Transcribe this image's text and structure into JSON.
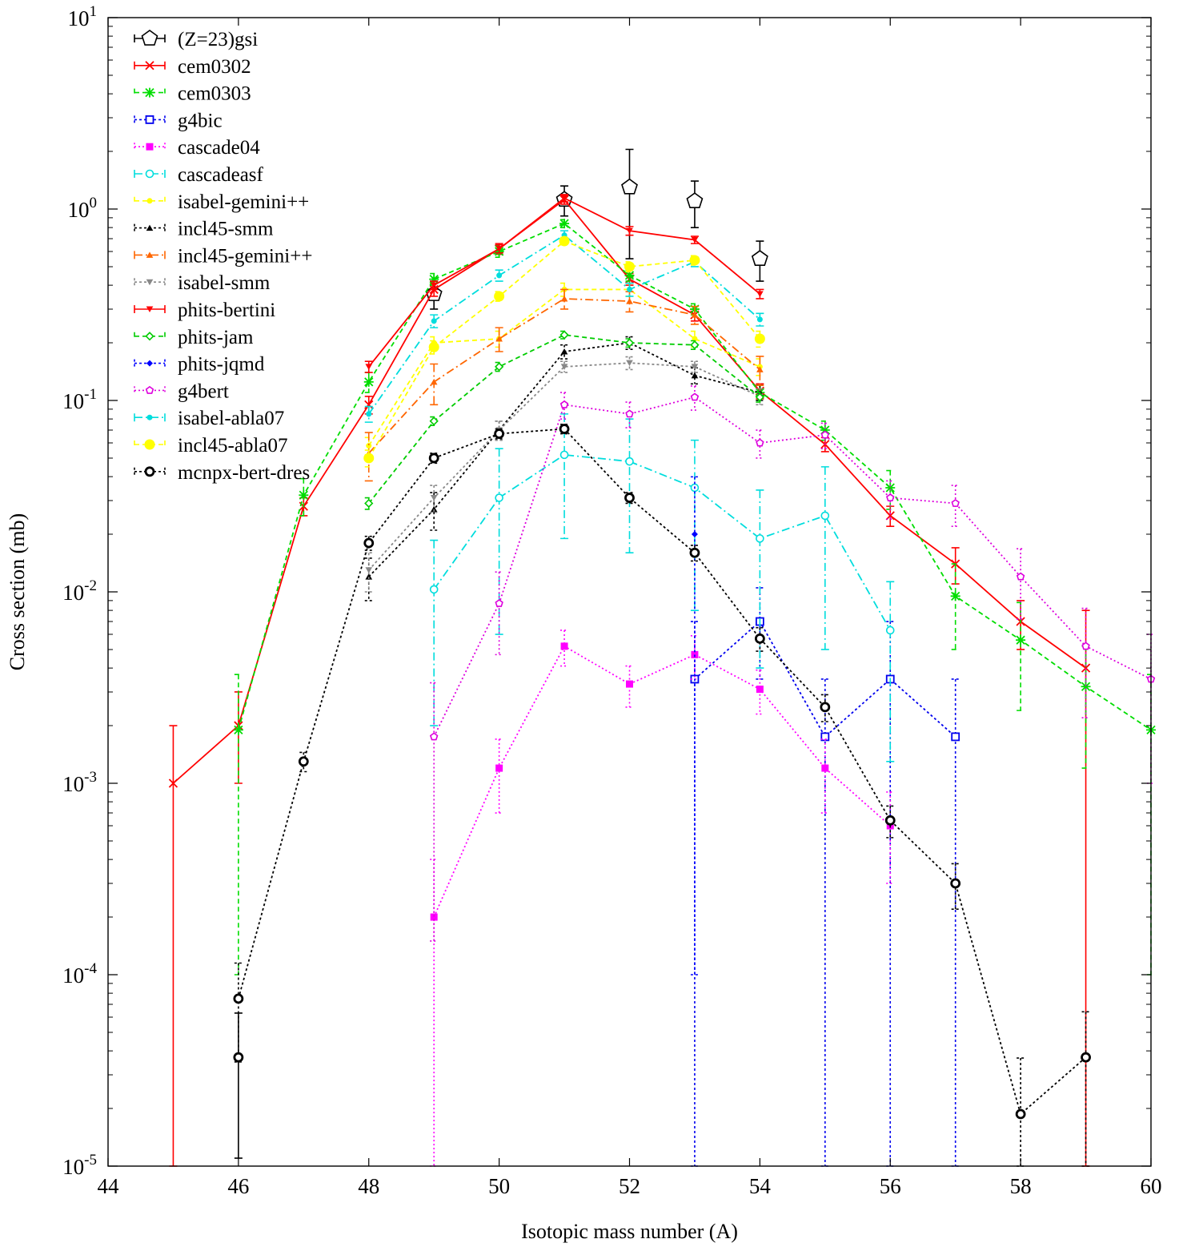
{
  "chart_data": {
    "type": "line",
    "title": "",
    "xlabel": "Isotopic mass number (A)",
    "ylabel": "Cross section (mb)",
    "xlim": [
      44,
      60
    ],
    "ylim": [
      1e-05,
      10
    ],
    "yscale": "log",
    "grid": false,
    "legend_position": "top-left",
    "x_ticks": [
      44,
      46,
      48,
      50,
      52,
      54,
      56,
      58,
      60
    ],
    "y_ticks": [
      {
        "value": 1e-05,
        "base": "10",
        "exp": "-5"
      },
      {
        "value": 0.0001,
        "base": "10",
        "exp": "-4"
      },
      {
        "value": 0.001,
        "base": "10",
        "exp": "-3"
      },
      {
        "value": 0.01,
        "base": "10",
        "exp": "-2"
      },
      {
        "value": 0.1,
        "base": "10",
        "exp": "-1"
      },
      {
        "value": 1,
        "base": "10",
        "exp": "0"
      },
      {
        "value": 10,
        "base": "10",
        "exp": "1"
      }
    ],
    "series": [
      {
        "name": "(Z=23)gsi",
        "color": "#000000",
        "marker": "pentagon-open",
        "dash": "",
        "line": false,
        "points": [
          [
            49,
            0.36,
            0.06
          ],
          [
            51,
            1.12,
            0.2
          ],
          [
            52,
            1.3,
            0.75
          ],
          [
            53,
            1.1,
            0.3
          ],
          [
            54,
            0.55,
            0.13
          ]
        ]
      },
      {
        "name": "cem0302",
        "color": "#ff0000",
        "marker": "x",
        "dash": "",
        "line": true,
        "points": [
          [
            45,
            0.001,
            0.001
          ],
          [
            46,
            0.002,
            0.001
          ],
          [
            47,
            0.028,
            0.003
          ],
          [
            48,
            0.095,
            0.01
          ],
          [
            49,
            0.38,
            0.03
          ],
          [
            50,
            0.62,
            0.04
          ],
          [
            51,
            1.12,
            0.06
          ],
          [
            52,
            0.43,
            0.03
          ],
          [
            53,
            0.28,
            0.02
          ],
          [
            54,
            0.112,
            0.01
          ],
          [
            55,
            0.059,
            0.005
          ],
          [
            56,
            0.025,
            0.003
          ],
          [
            57,
            0.014,
            0.003
          ],
          [
            58,
            0.007,
            0.002
          ],
          [
            59,
            0.004,
            0.004
          ]
        ]
      },
      {
        "name": "cem0303",
        "color": "#00dd00",
        "marker": "star",
        "dash": "6,4",
        "line": true,
        "points": [
          [
            46,
            0.0019,
            0.0018
          ],
          [
            47,
            0.032,
            0.007
          ],
          [
            48,
            0.125,
            0.015
          ],
          [
            49,
            0.43,
            0.03
          ],
          [
            50,
            0.6,
            0.04
          ],
          [
            51,
            0.84,
            0.04
          ],
          [
            52,
            0.45,
            0.03
          ],
          [
            53,
            0.3,
            0.02
          ],
          [
            54,
            0.11,
            0.01
          ],
          [
            55,
            0.07,
            0.008
          ],
          [
            56,
            0.035,
            0.008
          ],
          [
            57,
            0.0095,
            0.0045
          ],
          [
            58,
            0.0056,
            0.0032
          ],
          [
            59,
            0.0032,
            0.002
          ],
          [
            60,
            0.0019,
            0.0018
          ]
        ]
      },
      {
        "name": "g4bic",
        "color": "#0000ee",
        "marker": "square-open",
        "dash": "3,3",
        "line": true,
        "points": [
          [
            53,
            0.0035,
            0.0035
          ],
          [
            54,
            0.007,
            0.0035
          ],
          [
            55,
            0.00175,
            0.00175
          ],
          [
            56,
            0.0035,
            0.0035
          ],
          [
            57,
            0.00175,
            0.00175
          ]
        ]
      },
      {
        "name": "cascade04",
        "color": "#ff00ff",
        "marker": "square-filled",
        "dash": "2,3",
        "line": true,
        "points": [
          [
            49,
            0.0002,
            0.0002
          ],
          [
            50,
            0.0012,
            0.0005
          ],
          [
            51,
            0.0052,
            0.0011
          ],
          [
            52,
            0.0033,
            0.0008
          ],
          [
            53,
            0.0047,
            0.0012
          ],
          [
            54,
            0.0031,
            0.0008
          ],
          [
            55,
            0.0012,
            0.0005
          ],
          [
            56,
            0.0006,
            0.0003
          ]
        ]
      },
      {
        "name": "cascadeasf",
        "color": "#00dddd",
        "marker": "circle-open",
        "dash": "10,4,2,4",
        "line": true,
        "points": [
          [
            49,
            0.0103,
            0.0083
          ],
          [
            50,
            0.031,
            0.025
          ],
          [
            51,
            0.052,
            0.033
          ],
          [
            52,
            0.048,
            0.032
          ],
          [
            53,
            0.035,
            0.027
          ],
          [
            54,
            0.019,
            0.015
          ],
          [
            55,
            0.025,
            0.02
          ],
          [
            56,
            0.0063,
            0.005
          ]
        ]
      },
      {
        "name": "isabel-gemini++",
        "color": "#ffff00",
        "marker": "circle-filled-small",
        "dash": "6,4",
        "line": true,
        "points": [
          [
            48,
            0.058,
            0.006
          ],
          [
            49,
            0.2,
            0.015
          ],
          [
            50,
            0.21,
            0.02
          ],
          [
            51,
            0.38,
            0.03
          ],
          [
            52,
            0.38,
            0.03
          ],
          [
            53,
            0.21,
            0.02
          ],
          [
            54,
            0.15,
            0.015
          ]
        ]
      },
      {
        "name": "incl45-smm",
        "color": "#000000",
        "marker": "triangle-filled",
        "dash": "3,3",
        "line": true,
        "points": [
          [
            48,
            0.012,
            0.003
          ],
          [
            49,
            0.027,
            0.006
          ],
          [
            50,
            0.07,
            0.008
          ],
          [
            51,
            0.18,
            0.015
          ],
          [
            52,
            0.2,
            0.015
          ],
          [
            53,
            0.135,
            0.013
          ],
          [
            54,
            0.11,
            0.01
          ]
        ]
      },
      {
        "name": "incl45-gemini++",
        "color": "#ff6600",
        "marker": "triangle-filled",
        "dash": "10,4,2,4",
        "line": true,
        "points": [
          [
            48,
            0.053,
            0.015
          ],
          [
            49,
            0.125,
            0.03
          ],
          [
            50,
            0.21,
            0.03
          ],
          [
            51,
            0.34,
            0.04
          ],
          [
            52,
            0.33,
            0.04
          ],
          [
            53,
            0.28,
            0.03
          ],
          [
            54,
            0.145,
            0.025
          ]
        ]
      },
      {
        "name": "isabel-smm",
        "color": "#888888",
        "marker": "triangle-down-filled",
        "dash": "3,3",
        "line": true,
        "points": [
          [
            48,
            0.013,
            0.003
          ],
          [
            49,
            0.031,
            0.005
          ],
          [
            50,
            0.07,
            0.008
          ],
          [
            51,
            0.15,
            0.01
          ],
          [
            52,
            0.157,
            0.012
          ],
          [
            53,
            0.15,
            0.01
          ],
          [
            54,
            0.105,
            0.01
          ]
        ]
      },
      {
        "name": "phits-bertini",
        "color": "#ff0000",
        "marker": "triangle-down-filled",
        "dash": "",
        "line": true,
        "points": [
          [
            48,
            0.15,
            0.01
          ],
          [
            49,
            0.4,
            0.02
          ],
          [
            50,
            0.62,
            0.03
          ],
          [
            51,
            1.14,
            0.05
          ],
          [
            52,
            0.77,
            0.04
          ],
          [
            53,
            0.69,
            0.03
          ],
          [
            54,
            0.36,
            0.02
          ]
        ]
      },
      {
        "name": "phits-jam",
        "color": "#00cc00",
        "marker": "diamond-open",
        "dash": "6,4",
        "line": true,
        "points": [
          [
            48,
            0.029,
            0.002
          ],
          [
            49,
            0.078,
            0.004
          ],
          [
            50,
            0.15,
            0.008
          ],
          [
            51,
            0.22,
            0.01
          ],
          [
            52,
            0.2,
            0.01
          ],
          [
            53,
            0.195,
            0.01
          ],
          [
            54,
            0.104,
            0.006
          ]
        ]
      },
      {
        "name": "phits-jqmd",
        "color": "#0000ff",
        "marker": "diamond-filled",
        "dash": "3,3",
        "line": false,
        "points": [
          [
            53,
            0.02,
            0.0199
          ]
        ]
      },
      {
        "name": "g4bert",
        "color": "#dd00dd",
        "marker": "pentagon-small",
        "dash": "2,3",
        "line": true,
        "points": [
          [
            49,
            0.00175,
            0.0016
          ],
          [
            50,
            0.0087,
            0.004
          ],
          [
            51,
            0.095,
            0.015
          ],
          [
            52,
            0.085,
            0.013
          ],
          [
            53,
            0.104,
            0.015
          ],
          [
            54,
            0.06,
            0.01
          ],
          [
            55,
            0.066,
            0.01
          ],
          [
            56,
            0.031,
            0.007
          ],
          [
            57,
            0.029,
            0.007
          ],
          [
            58,
            0.012,
            0.0048
          ],
          [
            59,
            0.0052,
            0.003
          ],
          [
            60,
            0.0035,
            0.0025
          ]
        ]
      },
      {
        "name": "isabel-abla07",
        "color": "#00dddd",
        "marker": "circle-filled-small",
        "dash": "10,4,2,4",
        "line": true,
        "points": [
          [
            48,
            0.085,
            0.008
          ],
          [
            49,
            0.26,
            0.02
          ],
          [
            50,
            0.45,
            0.03
          ],
          [
            51,
            0.73,
            0.04
          ],
          [
            52,
            0.38,
            0.03
          ],
          [
            53,
            0.53,
            0.03
          ],
          [
            54,
            0.265,
            0.02
          ]
        ]
      },
      {
        "name": "incl45-abla07",
        "color": "#ffff00",
        "marker": "circle-filled-large",
        "dash": "6,4",
        "line": true,
        "points": [
          [
            48,
            0.05,
            0.005
          ],
          [
            49,
            0.19,
            0.015
          ],
          [
            50,
            0.35,
            0.02
          ],
          [
            51,
            0.68,
            0.03
          ],
          [
            52,
            0.5,
            0.03
          ],
          [
            53,
            0.54,
            0.03
          ],
          [
            54,
            0.21,
            0.02
          ]
        ]
      },
      {
        "name": "mcnpx-bert-dres",
        "color": "#000000",
        "marker": "circle-bold",
        "dash": "3,3",
        "line": true,
        "points": [
          [
            46,
            7.5e-05,
            4e-05
          ],
          [
            47,
            0.0013,
            0.00015
          ],
          [
            48,
            0.018,
            0.0015
          ],
          [
            49,
            0.05,
            0.003
          ],
          [
            50,
            0.067,
            0.004
          ],
          [
            51,
            0.071,
            0.004
          ],
          [
            52,
            0.031,
            0.002
          ],
          [
            53,
            0.016,
            0.0015
          ],
          [
            54,
            0.0057,
            0.0008
          ],
          [
            55,
            0.0025,
            0.0004
          ],
          [
            56,
            0.00064,
            0.00012
          ],
          [
            57,
            0.0003,
            8e-05
          ],
          [
            58,
            1.87e-05,
            1.8e-05
          ],
          [
            59,
            3.7e-05,
            2.7e-05
          ]
        ]
      },
      {
        "name": "",
        "color": "#000000",
        "marker": "circle-bold",
        "dash": "",
        "line": false,
        "points": [
          [
            46,
            3.7e-05,
            2.6e-05
          ]
        ]
      }
    ]
  }
}
